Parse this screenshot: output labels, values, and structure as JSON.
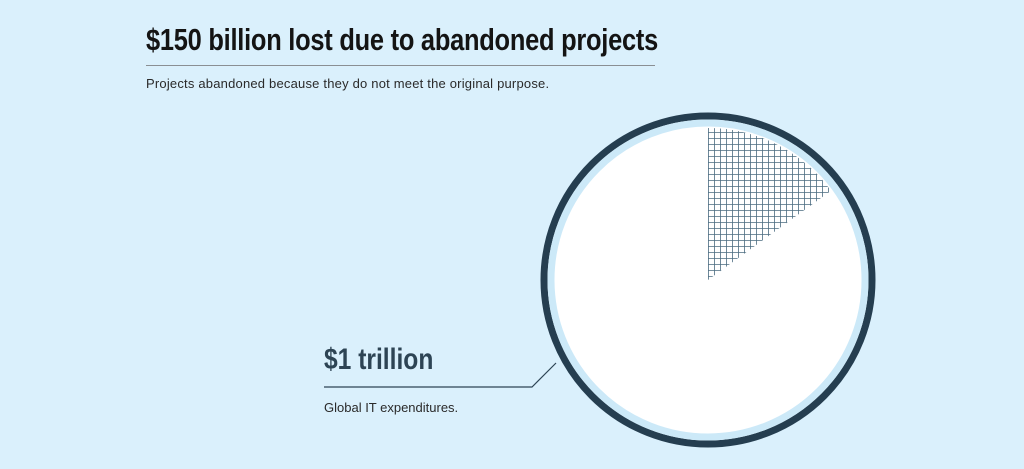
{
  "title": "$150 billion lost due to abandoned projects",
  "subtitle": "Projects abandoned because they do not meet the original purpose.",
  "chart_data": {
    "type": "pie",
    "categories": [
      "abandoned projects",
      "Global IT expenditures"
    ],
    "values": [
      150,
      1000
    ],
    "units": "billion USD",
    "annotations": [
      {
        "text": "$1 trillion",
        "subtext": "Global IT expenditures."
      }
    ],
    "colors": {
      "hatched_slice_line": "#4a6b80",
      "pie_fill": "#ffffff",
      "outer_ring": "#253e50",
      "inner_ring": "#cce9f8"
    }
  },
  "labels": {
    "total_value": "$1 trillion",
    "total_desc": "Global IT expenditures."
  },
  "colors": {
    "background": "#daf0fc",
    "title_text": "#141414",
    "label_text": "#2d4454"
  }
}
